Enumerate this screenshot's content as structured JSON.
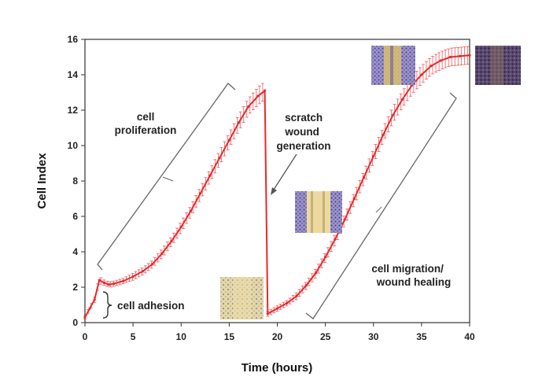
{
  "chart_data": {
    "type": "line",
    "xlabel": "Time (hours)",
    "ylabel": "Cell Index",
    "xlim": [
      0,
      40
    ],
    "ylim": [
      0,
      16
    ],
    "xticks": [
      0,
      5,
      10,
      15,
      20,
      25,
      30,
      35,
      40
    ],
    "yticks": [
      0,
      2,
      4,
      6,
      8,
      10,
      12,
      14,
      16
    ],
    "grid": false,
    "colors": {
      "series": "#e8282b",
      "error": "#e8282b",
      "annotation": "#666666"
    },
    "series": [
      {
        "x": [
          0,
          0.5,
          1,
          1.5,
          2,
          2.5,
          3,
          4,
          5,
          6,
          7,
          8,
          9,
          10,
          11,
          12,
          13,
          14,
          15,
          16,
          17,
          18,
          18.7,
          19,
          20,
          21,
          22,
          23,
          24,
          25,
          26,
          27,
          28,
          29,
          30,
          31,
          32,
          33,
          34,
          35,
          36,
          37,
          38,
          39,
          40
        ],
        "y": [
          0.3,
          0.8,
          1.3,
          2.4,
          2.25,
          2.15,
          2.2,
          2.35,
          2.6,
          2.9,
          3.3,
          3.9,
          4.6,
          5.4,
          6.3,
          7.3,
          8.3,
          9.3,
          10.3,
          11.3,
          12.2,
          12.8,
          13.1,
          0.5,
          0.8,
          1.1,
          1.5,
          2.1,
          2.8,
          3.7,
          4.7,
          5.8,
          7.0,
          8.2,
          9.4,
          10.6,
          11.7,
          12.6,
          13.4,
          14.0,
          14.5,
          14.8,
          15.0,
          15.05,
          15.1
        ],
        "error": [
          0.1,
          0.1,
          0.15,
          0.2,
          0.15,
          0.15,
          0.15,
          0.15,
          0.2,
          0.2,
          0.2,
          0.25,
          0.25,
          0.3,
          0.3,
          0.35,
          0.35,
          0.4,
          0.4,
          0.45,
          0.45,
          0.5,
          0.5,
          0.15,
          0.15,
          0.15,
          0.2,
          0.2,
          0.25,
          0.25,
          0.3,
          0.3,
          0.35,
          0.35,
          0.4,
          0.4,
          0.45,
          0.45,
          0.5,
          0.5,
          0.5,
          0.5,
          0.5,
          0.5,
          0.5
        ]
      }
    ],
    "annotations": [
      {
        "text": [
          "cell",
          "proliferation"
        ],
        "x": 6.5,
        "y": 12.2,
        "icon": "bracket-icon"
      },
      {
        "text": [
          "scratch",
          "wound",
          "generation"
        ],
        "x": 23.5,
        "y": 11.9,
        "icon": "arrow-icon"
      },
      {
        "text": [
          "cell adhesion"
        ],
        "x": 6.4,
        "y": 1.0,
        "icon": "curly-brace-icon"
      },
      {
        "text": [
          "cell migration/",
          "wound healing"
        ],
        "x": 33,
        "y": 3.0,
        "icon": "bracket-icon"
      }
    ],
    "images": [
      {
        "name": "cell-monolayer-image",
        "colors": [
          "#e8d9a0",
          "#8a8cc8"
        ]
      },
      {
        "name": "scratch-wound-image",
        "colors": [
          "#e8d9a0",
          "#7a6ab0"
        ]
      },
      {
        "name": "healing-wound-image",
        "colors": [
          "#d8c070",
          "#6050a0"
        ]
      },
      {
        "name": "healed-monolayer-image",
        "colors": [
          "#6b5a8a",
          "#3a2a40"
        ]
      }
    ]
  }
}
